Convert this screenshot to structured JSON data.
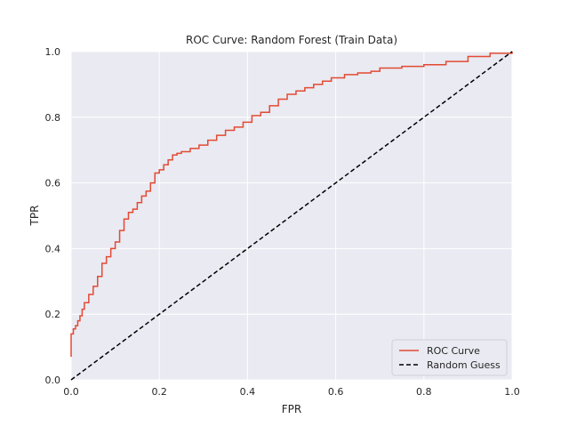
{
  "chart_data": {
    "type": "line",
    "title": "ROC Curve: Random Forest (Train Data)",
    "xlabel": "FPR",
    "ylabel": "TPR",
    "xlim": [
      0.0,
      1.0
    ],
    "ylim": [
      0.0,
      1.0
    ],
    "grid": true,
    "legend_position": "bottom-right",
    "x_ticks": [
      "0.0",
      "0.2",
      "0.4",
      "0.6",
      "0.8",
      "1.0"
    ],
    "y_ticks": [
      "0.0",
      "0.2",
      "0.4",
      "0.6",
      "0.8",
      "1.0"
    ],
    "series": [
      {
        "name": "ROC Curve",
        "color": "#e24a33",
        "style": "solid",
        "x": [
          0.0,
          0.0,
          0.005,
          0.01,
          0.015,
          0.02,
          0.025,
          0.03,
          0.04,
          0.05,
          0.06,
          0.07,
          0.08,
          0.09,
          0.1,
          0.11,
          0.12,
          0.13,
          0.14,
          0.15,
          0.16,
          0.17,
          0.18,
          0.19,
          0.2,
          0.21,
          0.22,
          0.23,
          0.24,
          0.25,
          0.27,
          0.29,
          0.31,
          0.33,
          0.35,
          0.37,
          0.39,
          0.41,
          0.43,
          0.45,
          0.47,
          0.49,
          0.51,
          0.53,
          0.55,
          0.57,
          0.59,
          0.62,
          0.65,
          0.68,
          0.7,
          0.75,
          0.8,
          0.85,
          0.9,
          0.95,
          1.0
        ],
        "y": [
          0.07,
          0.14,
          0.155,
          0.165,
          0.18,
          0.195,
          0.215,
          0.235,
          0.26,
          0.285,
          0.315,
          0.355,
          0.375,
          0.4,
          0.42,
          0.455,
          0.49,
          0.51,
          0.52,
          0.54,
          0.56,
          0.575,
          0.6,
          0.63,
          0.64,
          0.655,
          0.67,
          0.685,
          0.69,
          0.695,
          0.705,
          0.715,
          0.73,
          0.745,
          0.76,
          0.77,
          0.785,
          0.805,
          0.815,
          0.835,
          0.855,
          0.87,
          0.88,
          0.89,
          0.9,
          0.91,
          0.92,
          0.93,
          0.935,
          0.94,
          0.95,
          0.955,
          0.96,
          0.97,
          0.985,
          0.995,
          1.0
        ]
      },
      {
        "name": "Random Guess",
        "color": "#000000",
        "style": "dashed",
        "x": [
          0.0,
          1.0
        ],
        "y": [
          0.0,
          1.0
        ]
      }
    ]
  }
}
